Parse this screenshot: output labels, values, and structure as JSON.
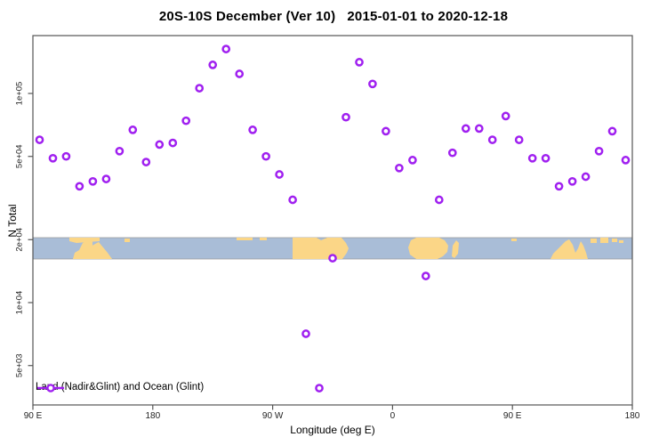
{
  "title": "20S-10S December (Ver 10)   2015-01-01 to 2020-12-18",
  "legend": {
    "label": "Land (Nadir&Glint) and Ocean (Glint)",
    "symbol": "line-with-open-circle"
  },
  "colors": {
    "point_purple": "#A020F0",
    "ocean_blue": "#A9BDD7",
    "land_yellow": "#FBD687",
    "axis_line": "#555555",
    "band_border": "#999999",
    "tick_text": "#222222"
  },
  "chart_data": {
    "type": "scatter",
    "title": "20S-10S December (Ver 10)   2015-01-01 to 2020-12-18",
    "xlabel": "Longitude (deg E)",
    "ylabel": "N Total",
    "x_axis": {
      "lon_start": 90,
      "lon_end": 540,
      "note_ticks_every_deg": 90,
      "ticks": [
        {
          "lon": 90,
          "label": "90 E"
        },
        {
          "lon": 180,
          "label": "180"
        },
        {
          "lon": 270,
          "label": "90 W"
        },
        {
          "lon": 360,
          "label": "0"
        },
        {
          "lon": 450,
          "label": "90 E"
        },
        {
          "lon": 540,
          "label": "180"
        }
      ]
    },
    "y_axis": {
      "scale": "log10",
      "ylim": [
        2900,
        193000
      ],
      "ticks": [
        {
          "value": 5000,
          "label": "5e+03"
        },
        {
          "value": 10000,
          "label": "1e+04"
        },
        {
          "value": 20000,
          "label": "2e+04"
        },
        {
          "value": 50000,
          "label": "5e+04"
        },
        {
          "value": 100000,
          "label": "1e+05"
        }
      ]
    },
    "legend_entries": [
      "Land (Nadir&Glint) and Ocean (Glint)"
    ],
    "grid": false,
    "map_band": {
      "description": "decorative world-map strip of the 20S-10S latitude band drawn across the plot",
      "n_top": 20500,
      "n_bottom": 16300
    },
    "points": [
      {
        "lon": 95,
        "n": 60000
      },
      {
        "lon": 105,
        "n": 49000
      },
      {
        "lon": 115,
        "n": 50000
      },
      {
        "lon": 125,
        "n": 36000
      },
      {
        "lon": 135,
        "n": 38000
      },
      {
        "lon": 145,
        "n": 39000
      },
      {
        "lon": 155,
        "n": 53000
      },
      {
        "lon": 165,
        "n": 67000
      },
      {
        "lon": 175,
        "n": 47000
      },
      {
        "lon": 185,
        "n": 57000
      },
      {
        "lon": 195,
        "n": 58000
      },
      {
        "lon": 205,
        "n": 74000
      },
      {
        "lon": 215,
        "n": 106000
      },
      {
        "lon": 225,
        "n": 137000
      },
      {
        "lon": 235,
        "n": 163000
      },
      {
        "lon": 245,
        "n": 124000
      },
      {
        "lon": 255,
        "n": 67000
      },
      {
        "lon": 265,
        "n": 50000
      },
      {
        "lon": 275,
        "n": 41000
      },
      {
        "lon": 285,
        "n": 31000
      },
      {
        "lon": 295,
        "n": 7100
      },
      {
        "lon": 305,
        "n": 3900
      },
      {
        "lon": 315,
        "n": 16300
      },
      {
        "lon": 325,
        "n": 77000
      },
      {
        "lon": 335,
        "n": 141000
      },
      {
        "lon": 345,
        "n": 111000
      },
      {
        "lon": 355,
        "n": 66000
      },
      {
        "lon": 365,
        "n": 44000
      },
      {
        "lon": 375,
        "n": 48000
      },
      {
        "lon": 385,
        "n": 13400
      },
      {
        "lon": 395,
        "n": 31000
      },
      {
        "lon": 405,
        "n": 52000
      },
      {
        "lon": 415,
        "n": 68000
      },
      {
        "lon": 425,
        "n": 68000
      },
      {
        "lon": 435,
        "n": 60000
      },
      {
        "lon": 445,
        "n": 78000
      },
      {
        "lon": 455,
        "n": 60000
      },
      {
        "lon": 465,
        "n": 49000
      },
      {
        "lon": 475,
        "n": 49000
      },
      {
        "lon": 485,
        "n": 36000
      },
      {
        "lon": 495,
        "n": 38000
      },
      {
        "lon": 505,
        "n": 40000
      },
      {
        "lon": 515,
        "n": 53000
      },
      {
        "lon": 525,
        "n": 66000
      },
      {
        "lon": 535,
        "n": 48000
      }
    ]
  }
}
